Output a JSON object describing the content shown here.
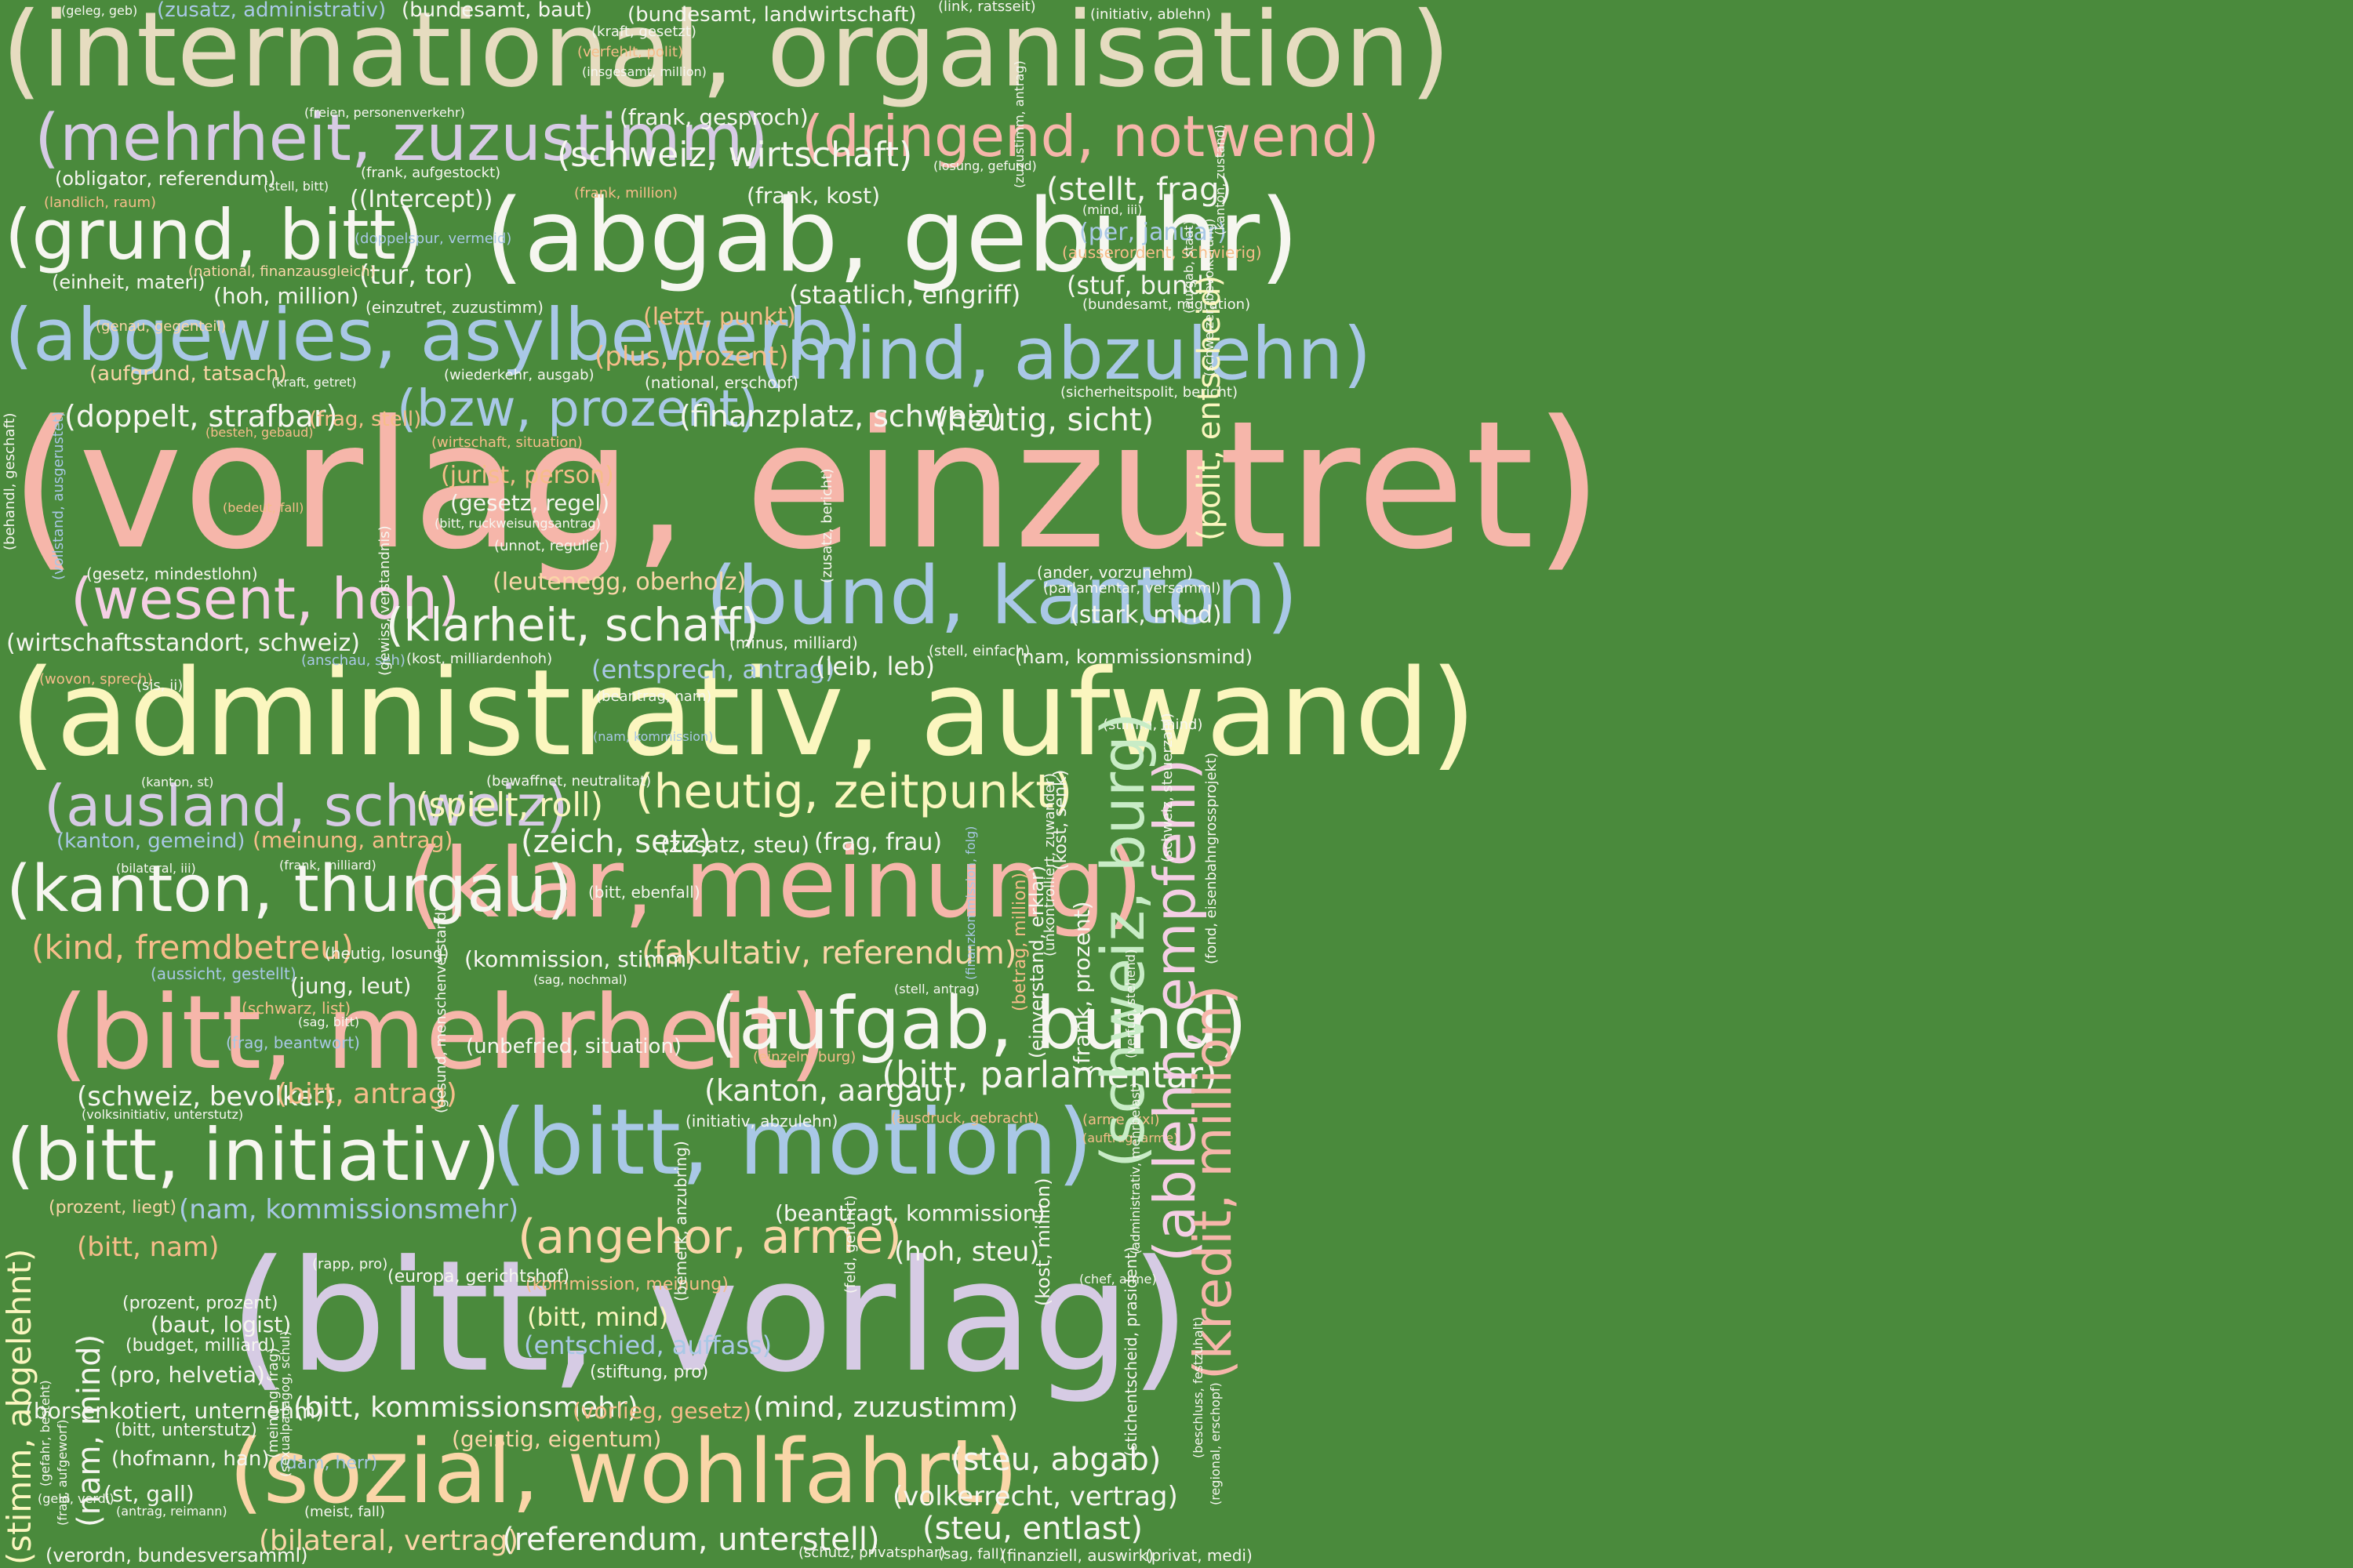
{
  "palette": {
    "background": "#4a8a3c",
    "beige": "#e6dcc0",
    "pink": "#f6b6aa",
    "white": "#f6f6f0",
    "blue": "#a9c8e6",
    "lilac": "#d6cbe4",
    "yellow": "#fbf6bf",
    "peach": "#fad6a8",
    "mint": "#c8ecc6",
    "rose": "#f4cfe4",
    "orange": "#f6bd8a"
  },
  "words": [
    "(international, organisation)",
    "(vorlag, einzutret)",
    "(bitt, vorlag)",
    "(administrativ, aufwand)",
    "(abgab, gebuhr)",
    "(bitt, mehrheit)",
    "(klar, meinung)",
    "(sozial, wohlfahrt)",
    "(bitt, motion)",
    "(abgewies, asylbewerb)",
    "(mind, abzulehn)",
    "(grund, bitt)",
    "(mehrheit, zuzustimm)",
    "(dringend, notwend)",
    "(bund, kanton)",
    "(bitt, initiativ)",
    "(kanton, thurgau)",
    "(aufgab, bund)",
    "(ausland, schweiz)",
    "(wesent, hoh)",
    "(heutig, zeitpunkt)",
    "(klarheit, schaff)",
    "(angehor, arme)",
    "(bzw, prozent)",
    "(schweiz, wirtschaft)",
    "(stellt, frag)",
    "(bitt, parlamentar)",
    "(kind, fremdbetreu)",
    "(fakultativ, referendum)",
    "(doppelt, strafbar)",
    "(finanzplatz, schweiz)",
    "(heutig, sicht)",
    "(spielt, roll)",
    "(zeich, setz)",
    "(kanton, aargau)",
    "(schweiz, bevolker)",
    "(bitt, antrag)",
    "(bitt, kommissionsmehr)",
    "(mind, zuzustimm)",
    "(steu, abgab)",
    "(steu, entlast)",
    "(referendum, unterstell)",
    "(bilateral, vertrag)",
    "(volkerrecht, vertrag)",
    "(hoh, steu)",
    "(tur, tor)",
    "(hoh, million)",
    "(frank, kost)",
    "(staatlich, eingriff)",
    "(plus, prozent)",
    "(letzt, punkt)",
    "(frag, stell)",
    "(jurist, person)",
    "(gesetz, regel)",
    "(leutenegg, oberholz)",
    "(entsprech, antrag)",
    "(leib, leb)",
    "(nam, kommissionsmehr)",
    "(beantragt, kommission)",
    "(bitt, mind)",
    "(entschied, auffass)",
    "(geistig, eigentum)",
    "(vorlieg, gesetz)",
    "(bitt, nam)",
    "(meinung, antrag)",
    "(kanton, gemeind)",
    "(stuf, bund)",
    "(per, januar)",
    "(frank, gesproch)",
    "((Intercept))",
    "(stark, mind)",
    "(frag, frau)",
    "(zusatz, steu)",
    "(kommission, stimm)",
    "(unbefried, situation)",
    "(wirtschaftsstandort, schweiz)",
    "(borsenkotiert, unternehm)",
    "(verordn, bundesversamml)",
    "(baut, logist)",
    "(pro, helvetia)",
    "(st, gall)",
    "(hofmann, han)",
    "(einheit, materi)",
    "(aufgrund, tatsach)",
    "(obligator, referendum)",
    "(jung, leut)",
    "(bundesamt, baut)",
    "(zusatz, administrativ)",
    "(bundesamt, landwirtschaft)",
    "(schwarz, list)",
    "(frag, beantwort)",
    "(budget, milliard)",
    "(prozent, prozent)",
    "(bitt, unterstutz)",
    "(prozent, liegt)",
    "(kommission, meinung)",
    "(stiftung, pro)",
    "(dam, herr)",
    "(europa, gerichtshof)",
    "(wiederkehr, ausgab)",
    "(genau, gegenteil)",
    "(national, finanzausgleich)",
    "(doppelspur, vermeid)",
    "(einzutret, zuzustimm)",
    "(gesetz, mindestlohn)",
    "(bitt, ebenfall)",
    "(heutig, losung)",
    "(aussicht, gestellt)",
    "(national, erschopf)",
    "(sicherheitspolit, bericht)",
    "(ausserordent, schwierig)",
    "(bundesamt, migration)",
    "(ander, vorzunehm)",
    "(parlamentar, versamml)",
    "(stell, einfach)",
    "(nam, kommissionsmind)",
    "(stimm, mind)",
    "(bewaffnet, neutralitat)",
    "(beantrag, nam)",
    "(nam, kommission)",
    "(minus, milliard)",
    "(anschau, seh)",
    "(kost, milliardenhoh)",
    "(wovon, sprech)",
    "(sis, ii)",
    "(kanton, st)",
    "(bilateral, iii)",
    "(frank, milliard)",
    "(stell, antrag)",
    "(einzeln, burg)",
    "(initiativ, abzulehn)",
    "(ausdruck, gebracht)",
    "(arme, xxi)",
    "(auftrag, arme)",
    "(chef, arme)",
    "(meist, fall)",
    "(schutz, privatsphar)",
    "(sag, fall)",
    "(finanziell, auswirk)",
    "(privat, medi)",
    "(geld, verdi)",
    "(antrag, reimann)",
    "(rapp, pro)",
    "(volksinitiativ, unterstutz)",
    "(sag, nochmal)",
    "(sag, bitt)",
    "(bitt, ruckweisungsantrag)",
    "(unnot, regulier)",
    "(bedeut, fall)",
    "(besteh, gebaud)",
    "(kraft, getret)",
    "(wirtschaft, situation)",
    "(losung, gefund)",
    "(mind, iii)",
    "(frank, million)",
    "(stell, bitt)",
    "(landlich, raum)",
    "(freien, personenverkehr)",
    "(frank, aufgestockt)",
    "(kraft, gesetzt)",
    "(verfehlt, polit)",
    "(insgesamt, million)",
    "(link, ratsseit)",
    "(initiativ, ablehn)",
    "(geleg, geb)",
    "(polit, entscheid)",
    "(schweiz, burg)",
    "(ablehn, empfehl)",
    "(kredit, million)",
    "(stimm, abgelehnt)",
    "(nam, mind)",
    "(frank, prozent)",
    "(kost, million)",
    "(kost, senk)",
    "(einverstand, erklar)",
    "(betrag, million)",
    "(stichentscheid, prasident)",
    "(administrativ, mehrbelast)",
    "(schweiz, steuerzahl)",
    "(fond, eisenbahngrossprojekt)",
    "(regional, erschopf)",
    "(gesund, menschenverstand)",
    "(gewiss, verstandnis)",
    "(bemerk, anzubring)",
    "(feld, gefuhrt)",
    "(zusatz, bericht)",
    "(behandl, geschaft)",
    "(vollstand, ausgerustet)",
    "(gefahr, besteht)",
    "(frag, aufgeworf)",
    "(meinung, frag)",
    "(sexualpadagog, schul)",
    "(zuzustimm, antrag)",
    "(kanton, zustand)",
    "(aufgab, staat)",
    "(schweizer, bevolkerung)",
    "(beschluss, festzuhalt)",
    "(verfug, stehend)",
    "(finanzkommission, folg)",
    "(unkontrolliert, zuwander)"
  ]
}
